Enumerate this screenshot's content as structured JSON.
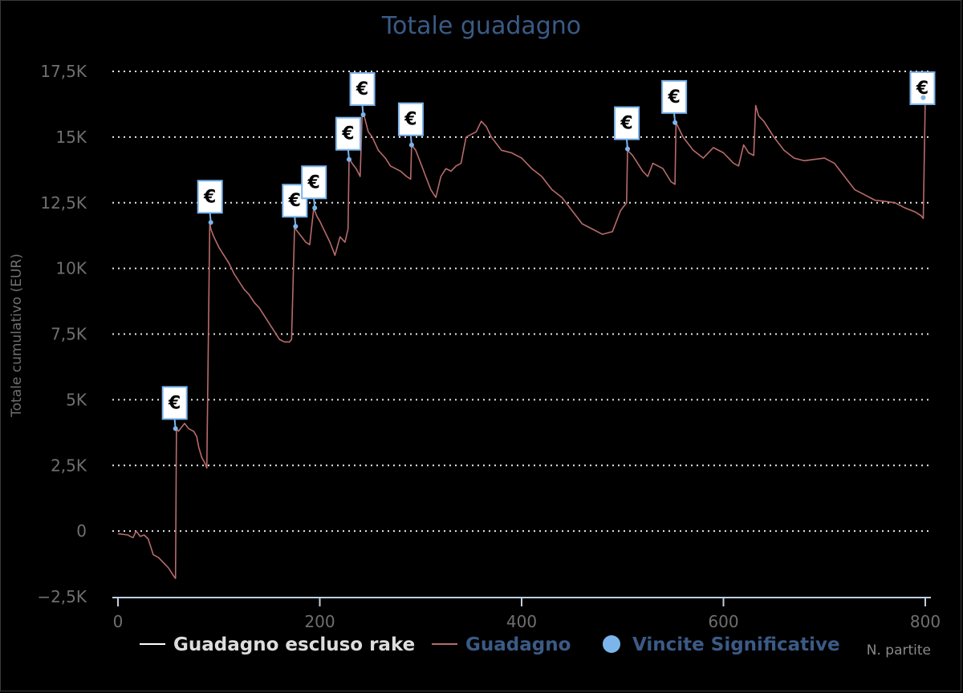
{
  "chart_data": {
    "type": "line",
    "title": "Totale guadagno",
    "ylabel": "Totale cumulativo (EUR)",
    "xlabel": "N. partite",
    "xlim": [
      0,
      800
    ],
    "ylim": [
      -2500,
      17500
    ],
    "x_ticks": [
      0,
      200,
      400,
      600,
      800
    ],
    "x_tick_labels": [
      "0",
      "200",
      "400",
      "600",
      "800"
    ],
    "y_ticks": [
      -2500,
      0,
      2500,
      5000,
      7500,
      10000,
      12500,
      15000,
      17500
    ],
    "y_tick_labels": [
      "−2,5K",
      "0",
      "2,5K",
      "5K",
      "7,5K",
      "10K",
      "12,5K",
      "15K",
      "17,5K"
    ],
    "grid": "horizontal-dotted",
    "legend_position": "bottom",
    "series": [
      {
        "name": "Guadagno escluso rake",
        "color": "#ffffff",
        "values": []
      },
      {
        "name": "Guadagno",
        "color": "#b86b6b",
        "x": [
          0,
          10,
          12,
          15,
          18,
          22,
          26,
          30,
          35,
          40,
          45,
          50,
          55,
          57,
          58,
          60,
          63,
          66,
          70,
          75,
          78,
          80,
          83,
          86,
          88,
          91,
          92,
          95,
          100,
          105,
          110,
          115,
          120,
          125,
          130,
          135,
          140,
          145,
          150,
          155,
          160,
          165,
          170,
          172,
          175,
          176,
          178,
          182,
          186,
          190,
          194,
          195,
          197,
          200,
          205,
          210,
          215,
          220,
          225,
          228,
          229,
          232,
          236,
          240,
          242,
          244,
          248,
          252,
          258,
          265,
          270,
          280,
          286,
          290,
          291,
          295,
          300,
          305,
          310,
          315,
          320,
          325,
          330,
          335,
          340,
          345,
          350,
          355,
          360,
          365,
          370,
          380,
          390,
          400,
          410,
          420,
          430,
          440,
          450,
          460,
          470,
          480,
          490,
          498,
          504,
          505,
          510,
          515,
          520,
          525,
          530,
          540,
          548,
          552,
          553,
          560,
          570,
          580,
          590,
          600,
          605,
          610,
          615,
          620,
          625,
          630,
          632,
          635,
          640,
          650,
          660,
          670,
          680,
          690,
          700,
          710,
          720,
          730,
          740,
          750,
          760,
          770,
          780,
          790,
          796,
          798,
          800
        ],
        "values": [
          -100,
          -150,
          -200,
          -250,
          0,
          -200,
          -150,
          -300,
          -900,
          -1000,
          -1200,
          -1400,
          -1700,
          -1800,
          3900,
          3800,
          3950,
          4100,
          3900,
          3800,
          3600,
          3200,
          2800,
          2600,
          2400,
          11800,
          11500,
          11200,
          10800,
          10500,
          10200,
          9800,
          9500,
          9200,
          9000,
          8700,
          8500,
          8200,
          7900,
          7600,
          7300,
          7200,
          7200,
          7300,
          11600,
          11500,
          11400,
          11200,
          11000,
          10900,
          12300,
          12200,
          12000,
          11800,
          11400,
          11000,
          10500,
          11200,
          11000,
          11500,
          14200,
          14000,
          13800,
          13500,
          15850,
          15800,
          15200,
          15000,
          14500,
          14200,
          13900,
          13700,
          13500,
          13400,
          14700,
          14500,
          14000,
          13500,
          13000,
          12700,
          13500,
          13800,
          13700,
          13900,
          14000,
          15000,
          15100,
          15200,
          15600,
          15400,
          15000,
          14500,
          14400,
          14200,
          13800,
          13500,
          13000,
          12700,
          12200,
          11700,
          11500,
          11300,
          11400,
          12200,
          12500,
          14500,
          14300,
          14000,
          13700,
          13500,
          14000,
          13800,
          13300,
          13200,
          15550,
          15000,
          14500,
          14200,
          14600,
          14400,
          14200,
          14000,
          13900,
          14700,
          14400,
          14300,
          16200,
          15800,
          15600,
          15000,
          14500,
          14200,
          14100,
          14150,
          14200,
          14000,
          13500,
          13000,
          12800,
          12600,
          12550,
          12500,
          12300,
          12150,
          12000,
          11900,
          16500
        ]
      },
      {
        "name": "Vincite Significative",
        "color": "#7cb5ec",
        "type": "scatter",
        "x": [
          57,
          92,
          176,
          195,
          229,
          243,
          291,
          505,
          552,
          798
        ],
        "values": [
          3900,
          11750,
          11600,
          12300,
          14150,
          15850,
          14700,
          14550,
          15550,
          16500
        ],
        "flag_label": "€"
      }
    ]
  }
}
